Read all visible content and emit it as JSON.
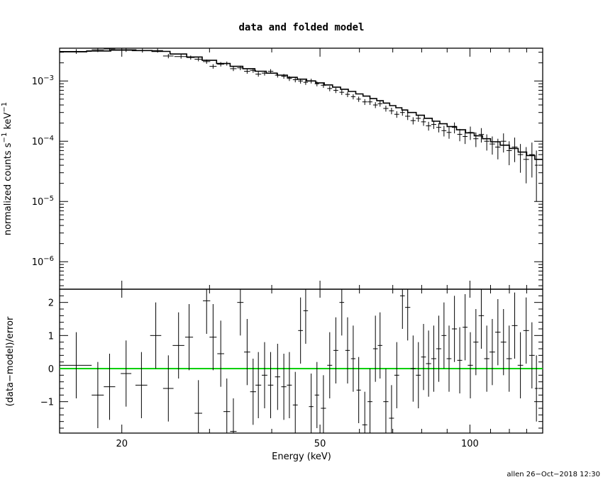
{
  "chart_data": [
    {
      "type": "scatter",
      "title": "data and folded model",
      "ylabel_base": "normalized counts s",
      "ylabel_mid": " keV",
      "ylabel_exp": "−1",
      "xscale": "log",
      "yscale": "log",
      "xlim": [
        15.0,
        140.0
      ],
      "ylim": [
        3.5e-07,
        0.0035
      ],
      "yticks": [
        {
          "value": 1e-06,
          "base": "10",
          "exp": "−6"
        },
        {
          "value": 1e-05,
          "base": "10",
          "exp": "−5"
        },
        {
          "value": 0.0001,
          "base": "10",
          "exp": "−4"
        },
        {
          "value": 0.001,
          "base": "10",
          "exp": "−3"
        }
      ],
      "series": [
        {
          "role": "data",
          "points": [
            [
              16.2,
              0.0031,
              1.2,
              0.00028
            ],
            [
              17.9,
              0.0033,
              0.5,
              0.00028
            ],
            [
              18.9,
              0.0034,
              0.5,
              0.00026
            ],
            [
              20.4,
              0.0033,
              1.0,
              0.00026
            ],
            [
              22.0,
              0.0032,
              0.6,
              0.00024
            ],
            [
              23.6,
              0.0032,
              0.6,
              0.00024
            ],
            [
              24.8,
              0.0026,
              0.6,
              0.00022
            ],
            [
              26.3,
              0.00255,
              0.8,
              0.0002
            ],
            [
              27.5,
              0.00245,
              0.5,
              0.00019
            ],
            [
              28.5,
              0.0023,
              0.5,
              0.00018
            ],
            [
              29.6,
              0.0021,
              0.5,
              0.00017
            ],
            [
              30.5,
              0.00175,
              0.5,
              0.00015
            ],
            [
              31.6,
              0.0019,
              0.5,
              0.00016
            ],
            [
              32.5,
              0.00195,
              0.5,
              0.00015
            ],
            [
              33.5,
              0.0016,
              0.5,
              0.00014
            ],
            [
              34.6,
              0.00165,
              0.5,
              0.00014
            ],
            [
              35.7,
              0.00145,
              0.5,
              0.00013
            ],
            [
              36.7,
              0.0015,
              0.5,
              0.00013
            ],
            [
              37.6,
              0.0013,
              0.5,
              0.00012
            ],
            [
              38.7,
              0.00135,
              0.5,
              0.00012
            ],
            [
              39.8,
              0.00145,
              0.5,
              0.00012
            ],
            [
              41.1,
              0.00125,
              0.5,
              0.00011
            ],
            [
              42.3,
              0.0012,
              0.5,
              0.00011
            ],
            [
              43.4,
              0.0011,
              0.5,
              0.0001
            ],
            [
              44.6,
              0.00105,
              0.5,
              0.0001
            ],
            [
              45.7,
              0.001,
              0.5,
              9.5e-05
            ],
            [
              46.8,
              0.00095,
              0.5,
              9e-05
            ],
            [
              48.0,
              0.001,
              0.5,
              9e-05
            ],
            [
              49.3,
              0.0009,
              0.5,
              8.5e-05
            ],
            [
              50.8,
              0.00085,
              0.6,
              8e-05
            ],
            [
              52.3,
              0.00075,
              0.6,
              7.5e-05
            ],
            [
              53.8,
              0.0007,
              0.6,
              7e-05
            ],
            [
              55.3,
              0.00065,
              0.6,
              6.5e-05
            ],
            [
              56.8,
              0.0006,
              0.6,
              6e-05
            ],
            [
              58.3,
              0.00055,
              0.6,
              5.5e-05
            ],
            [
              59.8,
              0.0005,
              0.6,
              5e-05
            ],
            [
              61.5,
              0.00045,
              0.7,
              5e-05
            ],
            [
              63.0,
              0.00045,
              0.7,
              5e-05
            ],
            [
              64.6,
              0.0004,
              0.7,
              4.5e-05
            ],
            [
              66.0,
              0.00042,
              0.7,
              4.5e-05
            ],
            [
              67.8,
              0.00035,
              0.8,
              4e-05
            ],
            [
              69.6,
              0.00032,
              0.8,
              4e-05
            ],
            [
              71.3,
              0.00028,
              0.8,
              3.5e-05
            ],
            [
              73.2,
              0.0003,
              0.8,
              3.5e-05
            ],
            [
              75.0,
              0.00026,
              0.9,
              3.5e-05
            ],
            [
              76.9,
              0.00022,
              0.9,
              3e-05
            ],
            [
              78.8,
              0.00024,
              0.9,
              3e-05
            ],
            [
              80.7,
              0.00021,
              0.9,
              3e-05
            ],
            [
              82.6,
              0.00018,
              1.0,
              3e-05
            ],
            [
              84.6,
              0.00019,
              1.0,
              3e-05
            ],
            [
              86.6,
              0.00017,
              1.0,
              3e-05
            ],
            [
              88.7,
              0.00015,
              1.0,
              3e-05
            ],
            [
              90.8,
              0.00014,
              1.0,
              3e-05
            ],
            [
              93.1,
              0.00017,
              1.1,
              3.5e-05
            ],
            [
              95.4,
              0.00013,
              1.1,
              3e-05
            ],
            [
              97.8,
              0.00012,
              1.1,
              3e-05
            ],
            [
              100.2,
              0.00014,
              1.2,
              3.5e-05
            ],
            [
              102.8,
              0.00011,
              1.2,
              3e-05
            ],
            [
              105.4,
              0.00013,
              1.3,
              3.5e-05
            ],
            [
              108.1,
              0.0001,
              1.3,
              3e-05
            ],
            [
              110.9,
              9e-05,
              1.4,
              3e-05
            ],
            [
              113.8,
              8e-05,
              1.4,
              3e-05
            ],
            [
              116.8,
              0.0001,
              1.5,
              3.5e-05
            ],
            [
              119.9,
              7e-05,
              1.5,
              3e-05
            ],
            [
              123.0,
              8e-05,
              1.6,
              3.5e-05
            ],
            [
              126.3,
              6e-05,
              1.6,
              3e-05
            ],
            [
              129.7,
              5e-05,
              1.7,
              3e-05
            ],
            [
              133.2,
              6e-05,
              1.7,
              3.5e-05
            ],
            [
              136.0,
              4e-05,
              1.0,
              3e-05
            ]
          ]
        },
        {
          "role": "model",
          "steps": [
            [
              15.0,
              0.00305
            ],
            [
              17.0,
              0.00315
            ],
            [
              19.0,
              0.00325
            ],
            [
              21.0,
              0.0032
            ],
            [
              23.0,
              0.0031
            ],
            [
              25.0,
              0.0028
            ],
            [
              27.0,
              0.0025
            ],
            [
              29.0,
              0.0022
            ],
            [
              31.0,
              0.00195
            ],
            [
              33.0,
              0.00175
            ],
            [
              35.0,
              0.0016
            ],
            [
              37.0,
              0.00145
            ],
            [
              39.0,
              0.00135
            ],
            [
              41.0,
              0.00125
            ],
            [
              43.0,
              0.00115
            ],
            [
              45.0,
              0.00107
            ],
            [
              47.0,
              0.001
            ],
            [
              49.0,
              0.00093
            ],
            [
              51.0,
              0.00086
            ],
            [
              53.0,
              0.00079
            ],
            [
              55.0,
              0.00073
            ],
            [
              57.0,
              0.00067
            ],
            [
              59.0,
              0.00061
            ],
            [
              61.0,
              0.00056
            ],
            [
              63.0,
              0.00051
            ],
            [
              65.0,
              0.00047
            ],
            [
              67.0,
              0.00043
            ],
            [
              69.0,
              0.00039
            ],
            [
              71.0,
              0.00036
            ],
            [
              73.0,
              0.00033
            ],
            [
              75.0,
              0.0003
            ],
            [
              78.0,
              0.00027
            ],
            [
              81.0,
              0.00024
            ],
            [
              84.0,
              0.000215
            ],
            [
              87.0,
              0.000195
            ],
            [
              90.0,
              0.000175
            ],
            [
              94.0,
              0.000155
            ],
            [
              98.0,
              0.000138
            ],
            [
              102.0,
              0.000123
            ],
            [
              106.0,
              0.00011
            ],
            [
              110.0,
              9.8e-05
            ],
            [
              115.0,
              8.6e-05
            ],
            [
              120.0,
              7.6e-05
            ],
            [
              125.0,
              6.6e-05
            ],
            [
              130.0,
              5.8e-05
            ],
            [
              135.0,
              5e-05
            ],
            [
              140.0,
              4.4e-05
            ]
          ]
        }
      ]
    },
    {
      "type": "scatter",
      "ylabel": "(data−model)/error",
      "xlabel": "Energy (keV)",
      "xscale": "log",
      "xlim": [
        15.0,
        140.0
      ],
      "ylim": [
        -1.95,
        2.4
      ],
      "xticks": [
        {
          "value": 20,
          "label": "20"
        },
        {
          "value": 50,
          "label": "50"
        },
        {
          "value": 100,
          "label": "100"
        }
      ],
      "yticks": [
        {
          "value": -1,
          "label": "−1"
        },
        {
          "value": 0,
          "label": "0"
        },
        {
          "value": 1,
          "label": "1"
        },
        {
          "value": 2,
          "label": "2"
        }
      ],
      "zero_line_color": "#00d000",
      "points": [
        [
          16.2,
          0.1,
          1.2,
          1.0
        ],
        [
          17.9,
          -0.8,
          0.5,
          1.0
        ],
        [
          18.9,
          -0.55,
          0.5,
          1.0
        ],
        [
          20.4,
          -0.15,
          0.5,
          1.0
        ],
        [
          21.9,
          -0.5,
          0.6,
          1.0
        ],
        [
          23.4,
          1.0,
          0.6,
          1.0
        ],
        [
          24.8,
          -0.6,
          0.6,
          1.0
        ],
        [
          26.0,
          0.7,
          0.7,
          1.0
        ],
        [
          27.3,
          0.95,
          0.5,
          1.0
        ],
        [
          28.5,
          -1.35,
          0.5,
          1.0
        ],
        [
          29.6,
          2.05,
          0.5,
          1.0
        ],
        [
          30.5,
          0.95,
          0.5,
          1.0
        ],
        [
          31.6,
          0.45,
          0.5,
          1.0
        ],
        [
          32.5,
          -1.3,
          0.5,
          1.0
        ],
        [
          33.5,
          -1.9,
          0.5,
          1.0
        ],
        [
          34.6,
          2.0,
          0.5,
          1.0
        ],
        [
          35.7,
          0.5,
          0.5,
          1.0
        ],
        [
          36.7,
          -0.7,
          0.5,
          1.0
        ],
        [
          37.6,
          -0.5,
          0.5,
          1.0
        ],
        [
          38.7,
          -0.2,
          0.5,
          1.0
        ],
        [
          39.8,
          -0.5,
          0.5,
          1.0
        ],
        [
          41.1,
          -0.25,
          0.5,
          1.0
        ],
        [
          42.3,
          -0.55,
          0.5,
          1.0
        ],
        [
          43.4,
          -0.5,
          0.5,
          1.0
        ],
        [
          44.6,
          -1.1,
          0.5,
          1.0
        ],
        [
          45.7,
          1.15,
          0.5,
          1.0
        ],
        [
          46.8,
          1.75,
          0.5,
          1.0
        ],
        [
          48.0,
          -1.15,
          0.5,
          1.0
        ],
        [
          49.3,
          -0.8,
          0.5,
          1.0
        ],
        [
          50.8,
          -1.2,
          0.6,
          1.0
        ],
        [
          52.3,
          0.1,
          0.6,
          1.0
        ],
        [
          53.8,
          0.55,
          0.6,
          1.0
        ],
        [
          55.3,
          2.0,
          0.6,
          1.0
        ],
        [
          56.8,
          0.55,
          0.6,
          1.0
        ],
        [
          58.3,
          0.3,
          0.6,
          1.0
        ],
        [
          59.8,
          -0.65,
          0.6,
          1.0
        ],
        [
          61.5,
          -1.7,
          0.7,
          1.0
        ],
        [
          63.0,
          -1.0,
          0.7,
          1.0
        ],
        [
          64.6,
          0.6,
          0.7,
          1.0
        ],
        [
          66.0,
          0.7,
          0.7,
          1.0
        ],
        [
          67.8,
          -1.0,
          0.8,
          1.0
        ],
        [
          69.6,
          -1.5,
          0.8,
          1.0
        ],
        [
          71.3,
          -0.2,
          0.8,
          1.0
        ],
        [
          73.2,
          2.2,
          0.8,
          1.0
        ],
        [
          75.0,
          1.85,
          0.9,
          1.0
        ],
        [
          76.9,
          0.0,
          0.9,
          1.0
        ],
        [
          78.8,
          -0.2,
          0.9,
          1.0
        ],
        [
          80.7,
          0.35,
          0.9,
          1.0
        ],
        [
          82.6,
          0.15,
          1.0,
          1.0
        ],
        [
          84.6,
          0.3,
          1.0,
          1.0
        ],
        [
          86.6,
          0.6,
          1.0,
          1.0
        ],
        [
          88.7,
          1.0,
          1.0,
          1.0
        ],
        [
          90.8,
          0.3,
          1.0,
          1.0
        ],
        [
          93.1,
          1.2,
          1.1,
          1.0
        ],
        [
          95.4,
          0.25,
          1.1,
          1.0
        ],
        [
          97.8,
          1.25,
          1.1,
          1.0
        ],
        [
          100.2,
          0.1,
          1.2,
          1.0
        ],
        [
          102.8,
          0.8,
          1.2,
          1.0
        ],
        [
          105.4,
          1.6,
          1.3,
          1.0
        ],
        [
          108.1,
          0.3,
          1.3,
          1.0
        ],
        [
          110.9,
          0.5,
          1.4,
          1.0
        ],
        [
          113.8,
          1.1,
          1.4,
          1.0
        ],
        [
          116.8,
          0.8,
          1.5,
          1.0
        ],
        [
          119.9,
          0.3,
          1.5,
          1.0
        ],
        [
          123.0,
          1.3,
          1.6,
          1.0
        ],
        [
          126.3,
          0.1,
          1.6,
          1.0
        ],
        [
          129.7,
          1.15,
          1.7,
          1.0
        ],
        [
          133.2,
          0.4,
          1.7,
          1.0
        ],
        [
          136.0,
          -0.6,
          1.0,
          1.0
        ]
      ]
    }
  ],
  "footer": "allen 26−Oct−2018 12:30"
}
